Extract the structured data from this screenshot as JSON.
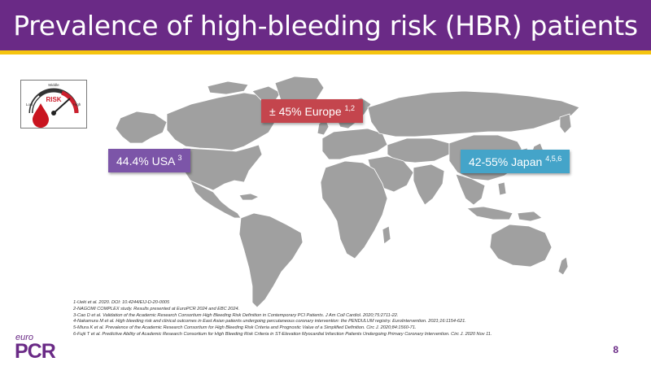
{
  "slide": {
    "title": "Prevalence of high-bleeding risk (HBR) patients",
    "page_number": "8",
    "colors": {
      "header": "#6a2a86",
      "accent_bar": "#f5c40f",
      "map": "#a0a0a0",
      "usa": "#7c55a8",
      "europe": "#c4454d",
      "japan": "#44a4c9"
    }
  },
  "gauge": {
    "icon": "risk-gauge-icon",
    "label_top": "Middle",
    "label_center": "RISK",
    "label_low": "Low",
    "label_high": "High"
  },
  "labels": {
    "usa": {
      "text": "44.4% USA",
      "sup": "3"
    },
    "europe": {
      "text": "± 45% Europe",
      "sup": "1,2"
    },
    "japan": {
      "text": "42-55% Japan",
      "sup": "4,5,6"
    }
  },
  "references": [
    "1-Ueki et al. 2020. DOI: 10.4244/EIJ-D-20-0005",
    "2-NAGOMI COMPLEX study. Results presented at EuroPCR 2024 and EBC 2024.",
    "3-Cao D et al. Validation of the Academic Research Consortium High Bleeding Risk Definition in Contemporary PCI Patients. J Am Coll Cardiol. 2020;75:2711-22.",
    "4-Nakamura M et al. High bleeding risk and clinical outcomes in East Asian patients undergoing percutaneous coronary intervention: the PENDULUM registry. EuroIntervention. 2021;16:1154-621.",
    "5-Miura K et al. Prevalence of the Academic Research Consortium for High Bleeding Risk Criteria and Prognostic Value of a Simplified Definition. Circ J. 2020;84:1560-71.",
    "6-Fujii T et al. Predictive Ability of Academic Research Consortium for High Bleeding Risk Criteria in ST-Elevation Myocardial Infarction Patients Undergoing Primary Coronary Intervention. Circ J. 2020 Nov 11."
  ],
  "logo": {
    "euro": "euro",
    "pcr": "PCR"
  }
}
